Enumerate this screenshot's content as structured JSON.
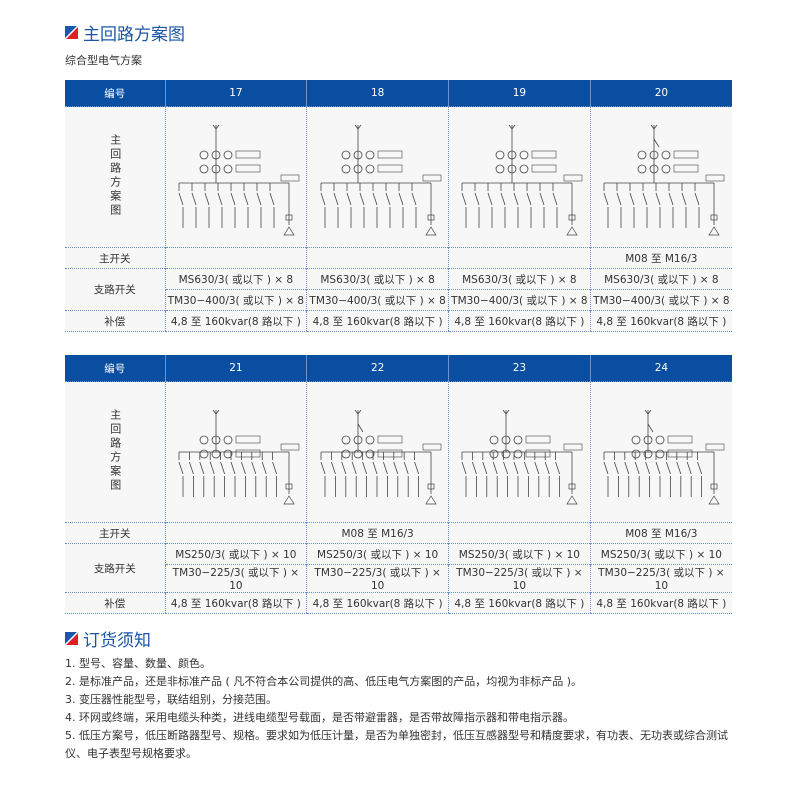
{
  "section1": {
    "title": "主回路方案图",
    "subtitle": "综合型电气方案"
  },
  "tables": [
    {
      "header": {
        "label": "编号",
        "cols": [
          "17",
          "18",
          "19",
          "20"
        ]
      },
      "row_labels": {
        "diagram": "主回路方案图",
        "main_switch": "主开关",
        "branch_switch": "支路开关",
        "compensation": "补偿"
      },
      "main_switch": [
        "",
        "",
        "",
        "M08 至 M16/3"
      ],
      "branch_ms": [
        "MS630/3( 或以下 ) × 8",
        "MS630/3( 或以下 ) × 8",
        "MS630/3( 或以下 ) × 8",
        "MS630/3( 或以下 ) × 8"
      ],
      "branch_tm": [
        "TM30−400/3( 或以下 ) × 8",
        "TM30−400/3( 或以下 ) × 8",
        "TM30−400/3( 或以下 ) × 8",
        "TM30−400/3( 或以下 ) × 8"
      ],
      "compensation": [
        "4,8 至 160kvar(8 路以下 )",
        "4,8 至 160kvar(8 路以下 )",
        "4,8 至 160kvar(8 路以下 )",
        "4,8 至 160kvar(8 路以下 )"
      ]
    },
    {
      "header": {
        "label": "编号",
        "cols": [
          "21",
          "22",
          "23",
          "24"
        ]
      },
      "row_labels": {
        "diagram": "主回路方案图",
        "main_switch": "主开关",
        "branch_switch": "支路开关",
        "compensation": "补偿"
      },
      "main_switch": [
        "",
        "M08 至 M16/3",
        "",
        "M08 至 M16/3"
      ],
      "branch_ms": [
        "MS250/3( 或以下 ) × 10",
        "MS250/3( 或以下 ) × 10",
        "MS250/3( 或以下 ) × 10",
        "MS250/3( 或以下 ) × 10"
      ],
      "branch_tm": [
        "TM30−225/3( 或以下 ) × 10",
        "TM30−225/3( 或以下 ) × 10",
        "TM30−225/3( 或以下 ) × 10",
        "TM30−225/3( 或以下 ) × 10"
      ],
      "compensation": [
        "4,8 至 160kvar(8 路以下 )",
        "4,8 至 160kvar(8 路以下 )",
        "4,8 至 160kvar(8 路以下 )",
        "4,8 至 160kvar(8 路以下 )"
      ]
    }
  ],
  "section2": {
    "title": "订货须知",
    "items": [
      "1. 型号、容量、数量、颜色。",
      "2. 是标准产品，还是非标准产品 ( 凡不符合本公司提供的高、低压电气方案图的产品，均视为非标产品 )。",
      "3. 变压器性能型号，联结组别，分接范围。",
      "4. 环网或终端，采用电缆头种类，进线电缆型号载面，是否带避雷器，是否带故障指示器和带电指示器。",
      "5. 低压方案号，低压断路器型号、规格。要求如为低压计量，是否为单独密封，低压互感器型号和精度要求，有功表、无功表或综合测试仪、电子表型号规格要求。"
    ]
  },
  "colors": {
    "header_bg": "#0a4ea2",
    "title": "#1b56a8",
    "logo_red": "#e01e26",
    "logo_blue": "#1b56a8"
  }
}
